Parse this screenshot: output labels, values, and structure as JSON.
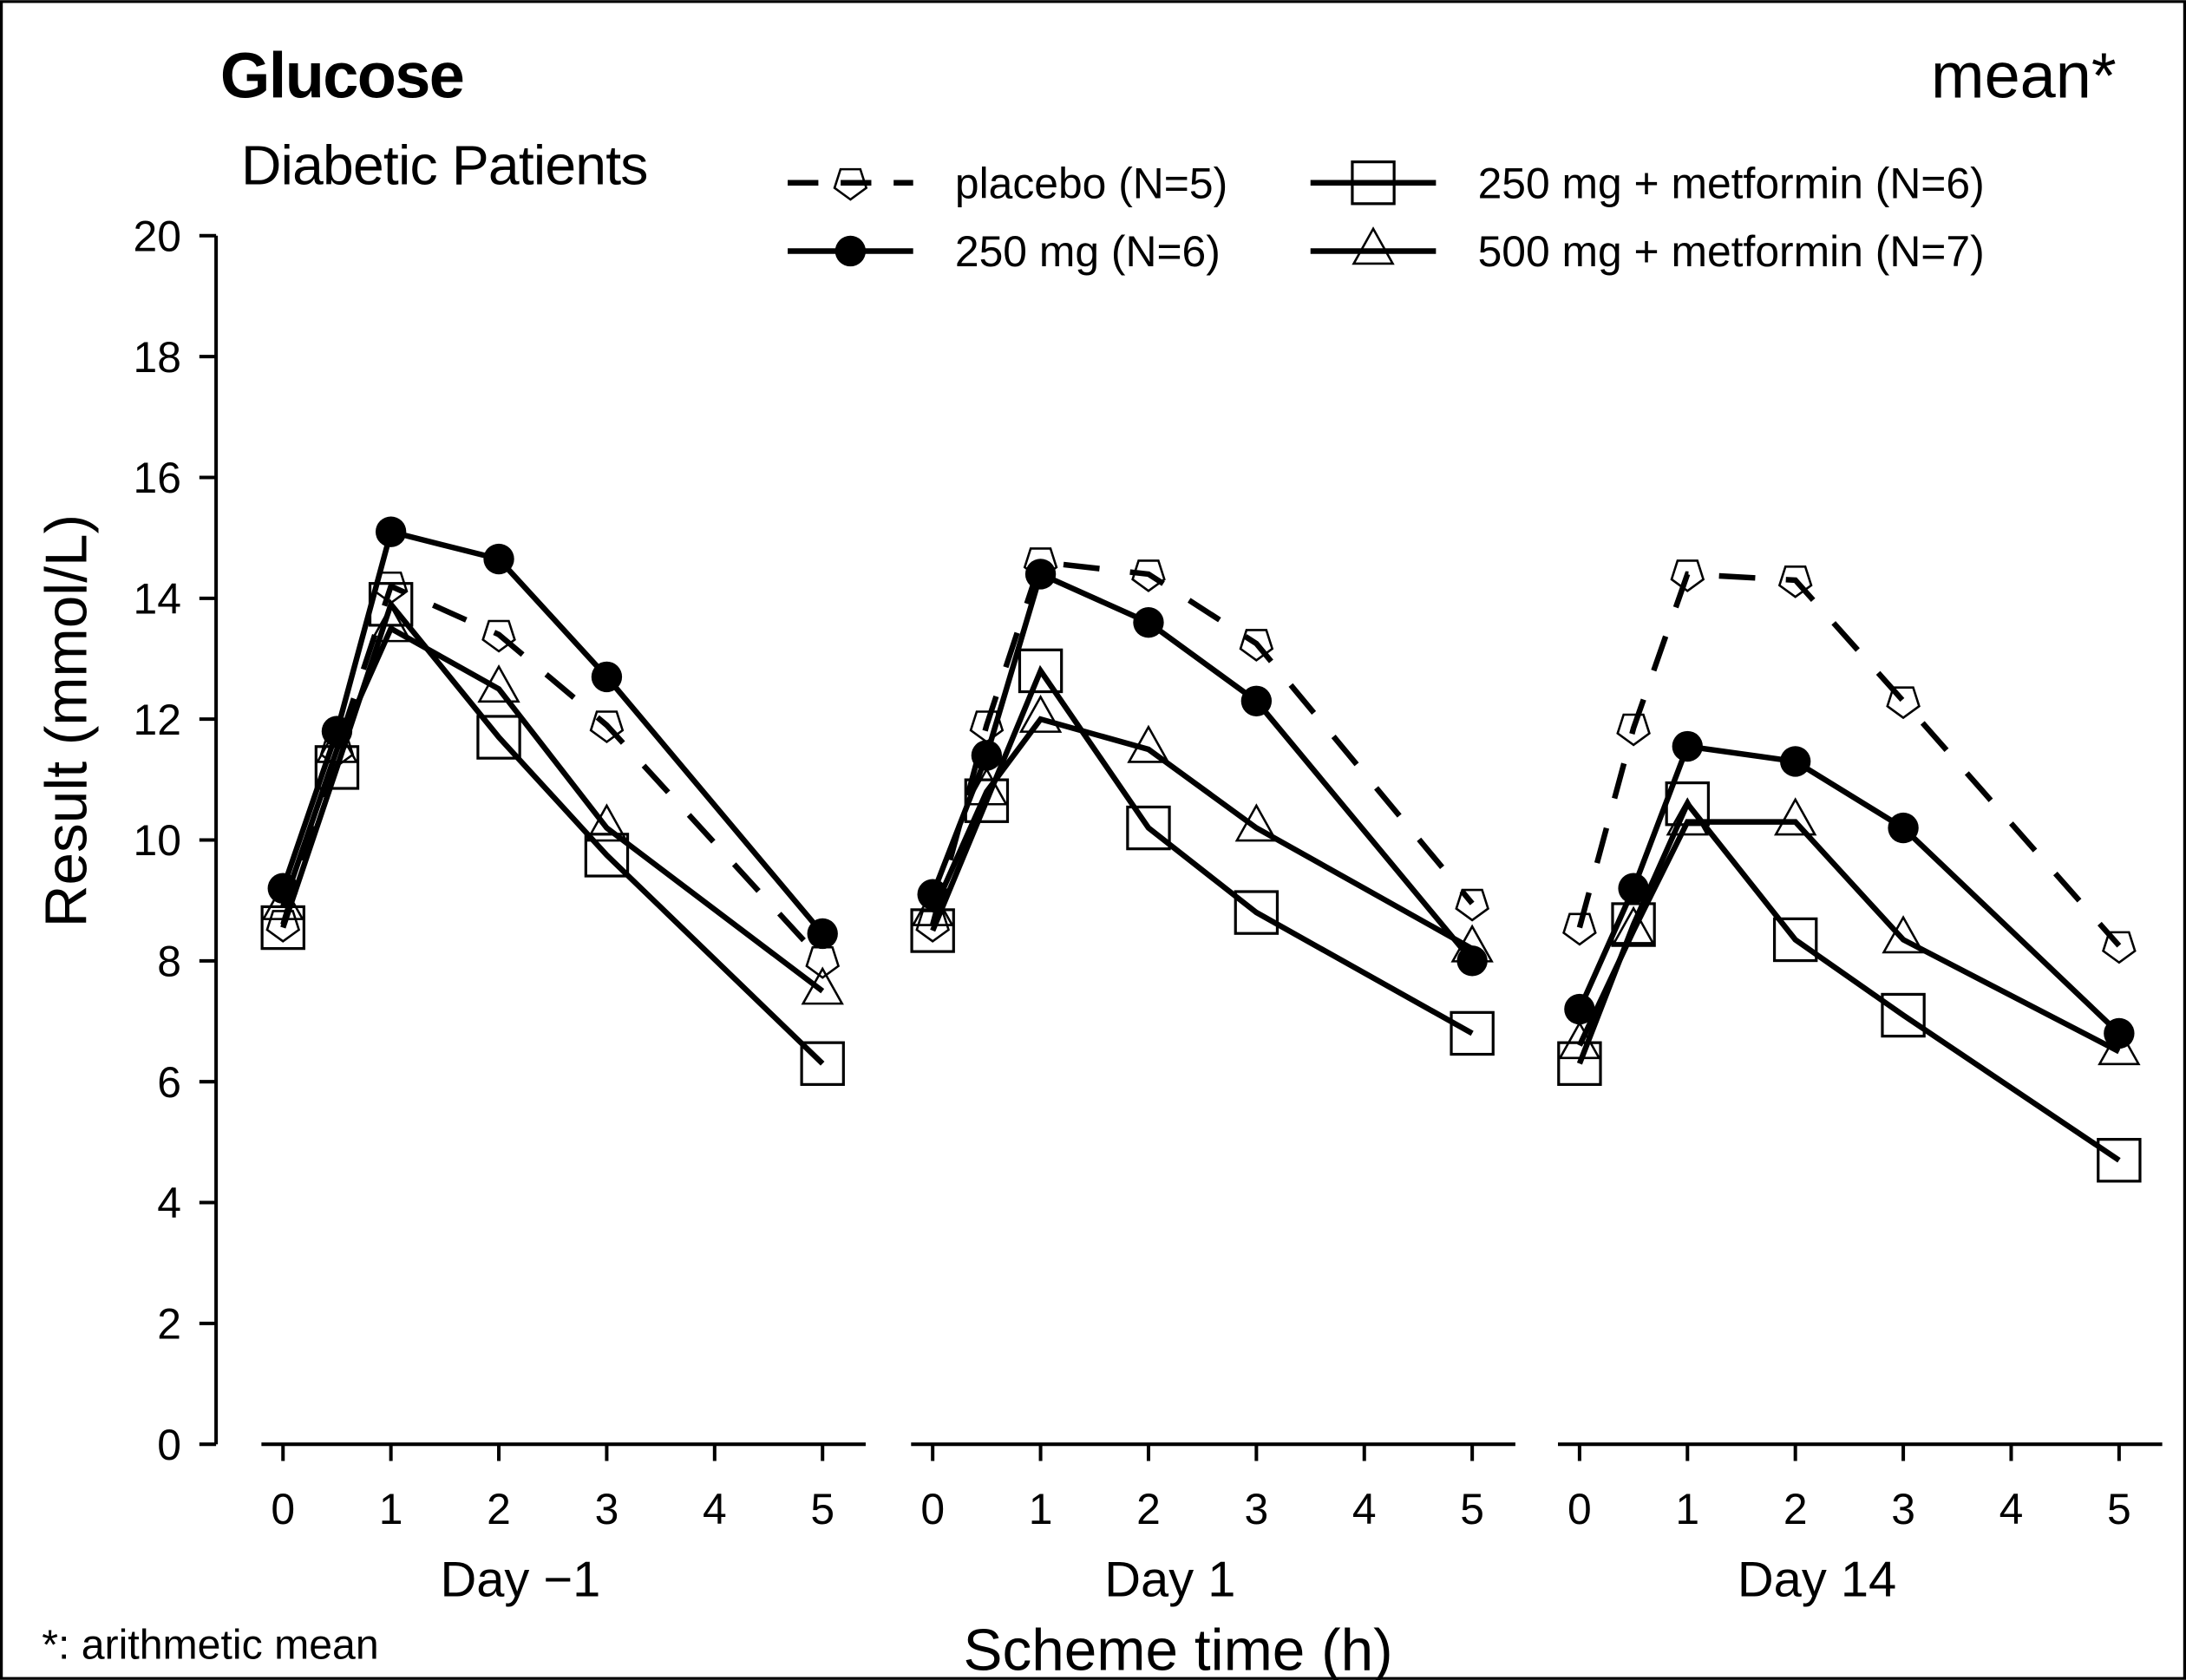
{
  "chart_data": {
    "type": "line",
    "title": "Glucose",
    "subtitle": "Diabetic Patients",
    "statistic_label": "mean*",
    "footnote": "*: arithmetic mean",
    "ylabel": "Result (mmol/L)",
    "xlabel": "Scheme time (h)",
    "ylim": [
      0,
      20
    ],
    "yticks": [
      0,
      2,
      4,
      6,
      8,
      10,
      12,
      14,
      16,
      18,
      20
    ],
    "xticks": [
      0,
      1,
      2,
      3,
      4,
      5
    ],
    "xlim": [
      -0.2,
      5.4
    ],
    "grid": false,
    "legend_position": "top-right",
    "x": [
      0,
      0.5,
      1,
      2,
      3,
      5
    ],
    "panels": [
      {
        "label": "Day  −1",
        "series": [
          {
            "name": "placebo  (N=5)",
            "marker": "pentagon-open",
            "line": "dashed",
            "values": [
              8.6,
              11.5,
              14.2,
              13.4,
              11.9,
              8.0
            ]
          },
          {
            "name": "250  mg  (N=6)",
            "marker": "circle-filled",
            "line": "solid",
            "values": [
              9.2,
              11.8,
              15.1,
              14.65,
              12.7,
              8.45
            ]
          },
          {
            "name": "250  mg  +  metformin  (N=6)",
            "marker": "square-open",
            "line": "solid",
            "values": [
              8.55,
              11.2,
              13.9,
              11.7,
              9.75,
              6.3
            ]
          },
          {
            "name": "500  mg  +  metformin  (N=7)",
            "marker": "triangle-open",
            "line": "solid",
            "values": [
              8.9,
              11.5,
              13.5,
              12.5,
              10.2,
              7.5
            ]
          }
        ]
      },
      {
        "label": "Day   1",
        "series": [
          {
            "name": "placebo  (N=5)",
            "marker": "pentagon-open",
            "line": "dashed",
            "values": [
              8.6,
              11.9,
              14.6,
              14.4,
              13.25,
              8.95
            ]
          },
          {
            "name": "250  mg  (N=6)",
            "marker": "circle-filled",
            "line": "solid",
            "values": [
              9.1,
              11.4,
              14.4,
              13.6,
              12.3,
              8.0
            ]
          },
          {
            "name": "250  mg  +  metformin  (N=6)",
            "marker": "square-open",
            "line": "solid",
            "values": [
              8.5,
              10.65,
              12.8,
              10.2,
              8.8,
              6.8
            ]
          },
          {
            "name": "500  mg  +  metformin  (N=7)",
            "marker": "triangle-open",
            "line": "solid",
            "values": [
              8.8,
              10.8,
              12.0,
              11.5,
              10.2,
              8.2
            ]
          }
        ]
      },
      {
        "label": "Day  14",
        "series": [
          {
            "name": "placebo  (N=5)",
            "marker": "pentagon-open",
            "line": "dashed",
            "values": [
              8.55,
              11.85,
              14.4,
              14.3,
              12.3,
              8.25
            ]
          },
          {
            "name": "250  mg  (N=6)",
            "marker": "circle-filled",
            "line": "solid",
            "values": [
              7.2,
              9.2,
              11.55,
              11.3,
              10.2,
              6.8
            ]
          },
          {
            "name": "250  mg  +  metformin  (N=6)",
            "marker": "square-open",
            "line": "solid",
            "values": [
              6.3,
              8.6,
              10.6,
              8.35,
              7.1,
              4.7
            ]
          },
          {
            "name": "500  mg  +  metformin  (N=7)",
            "marker": "triangle-open",
            "line": "solid",
            "values": [
              6.6,
              8.5,
              10.3,
              10.3,
              8.35,
              6.5
            ]
          }
        ]
      }
    ],
    "legend": [
      {
        "label": "placebo  (N=5)",
        "marker": "pentagon-open",
        "line": "dashed"
      },
      {
        "label": "250  mg  (N=6)",
        "marker": "circle-filled",
        "line": "solid"
      },
      {
        "label": "250  mg  +  metformin  (N=6)",
        "marker": "square-open",
        "line": "solid"
      },
      {
        "label": "500  mg  +  metformin  (N=7)",
        "marker": "triangle-open",
        "line": "solid"
      }
    ],
    "colors": {
      "ink": "#000000",
      "background": "#ffffff"
    }
  }
}
